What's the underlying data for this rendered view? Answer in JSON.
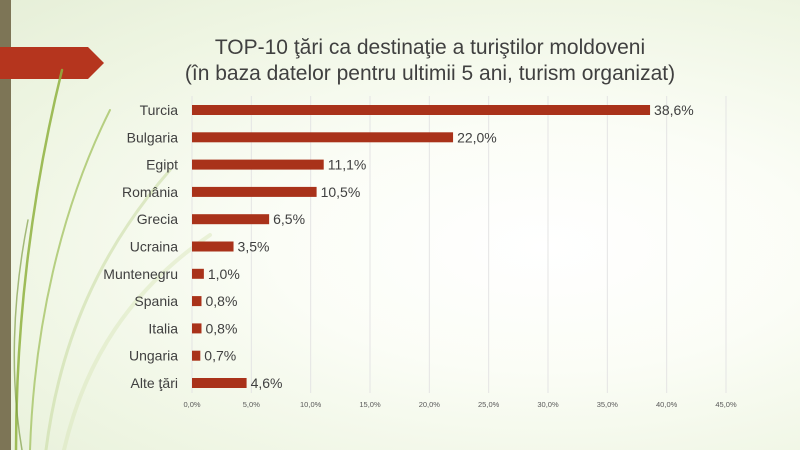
{
  "colors": {
    "bar": "#A9321A",
    "ribbon": "#B5351E",
    "side_strip": "#7D7556",
    "grid": "#E4E4E4",
    "text": "#404040"
  },
  "chart_data": {
    "type": "bar",
    "orientation": "horizontal",
    "title": [
      "TOP-10 ţări ca destinaţie a turiştilor moldoveni",
      "(în baza datelor pentru ultimii 5 ani, turism organizat)"
    ],
    "categories": [
      "Turcia",
      "Bulgaria",
      "Egipt",
      "România",
      "Grecia",
      "Ucraina",
      "Muntenegru",
      "Spania",
      "Italia",
      "Ungaria",
      "Alte ţări"
    ],
    "values": [
      38.6,
      22.0,
      11.1,
      10.5,
      6.5,
      3.5,
      1.0,
      0.8,
      0.8,
      0.7,
      4.6
    ],
    "value_labels": [
      "38,6%",
      "22,0%",
      "11,1%",
      "10,5%",
      "6,5%",
      "3,5%",
      "1,0%",
      "0,8%",
      "0,8%",
      "0,7%",
      "4,6%"
    ],
    "x_ticks": [
      0,
      5,
      10,
      15,
      20,
      25,
      30,
      35,
      40,
      45
    ],
    "x_tick_labels": [
      "0,0%",
      "5,0%",
      "10,0%",
      "15,0%",
      "20,0%",
      "25,0%",
      "30,0%",
      "35,0%",
      "40,0%",
      "45,0%"
    ],
    "xlim": [
      0,
      45
    ],
    "grid": true,
    "legend": false
  }
}
